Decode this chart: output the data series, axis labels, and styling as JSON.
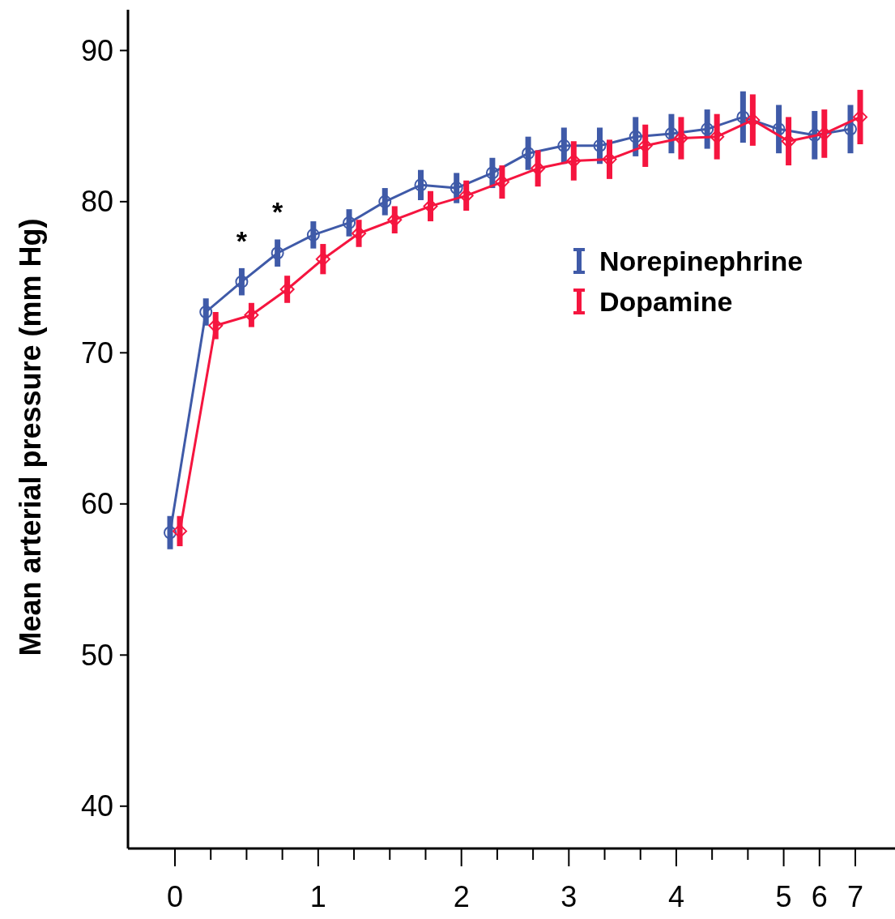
{
  "chart_data": {
    "type": "line",
    "ylabel": "Mean arterial pressure (mm Hg)",
    "categories": [
      "0",
      null,
      null,
      null,
      "1",
      null,
      null,
      null,
      "2",
      null,
      null,
      "3",
      null,
      null,
      "4",
      null,
      null,
      "5",
      "6",
      "7"
    ],
    "series": [
      {
        "name": "Norepinephrine",
        "color": "#3f5aa8",
        "marker": "circle",
        "values": [
          58.1,
          72.7,
          74.7,
          76.6,
          77.8,
          78.6,
          80.0,
          81.1,
          80.9,
          81.9,
          83.2,
          83.7,
          83.7,
          84.3,
          84.5,
          84.8,
          85.6,
          84.8,
          84.4,
          84.8
        ],
        "errors": [
          1.1,
          0.9,
          0.9,
          0.9,
          0.9,
          0.9,
          0.9,
          1.0,
          1.0,
          1.0,
          1.1,
          1.2,
          1.2,
          1.3,
          1.3,
          1.3,
          1.7,
          1.6,
          1.6,
          1.6
        ]
      },
      {
        "name": "Dopamine",
        "color": "#f5153f",
        "marker": "diamond",
        "values": [
          58.2,
          71.8,
          72.5,
          74.2,
          76.2,
          77.9,
          78.8,
          79.7,
          80.4,
          81.3,
          82.2,
          82.7,
          82.8,
          83.7,
          84.2,
          84.3,
          85.4,
          84.0,
          84.5,
          85.6
        ],
        "errors": [
          1.0,
          0.9,
          0.8,
          0.9,
          1.0,
          0.9,
          0.9,
          1.0,
          1.0,
          1.1,
          1.2,
          1.3,
          1.3,
          1.4,
          1.4,
          1.5,
          1.7,
          1.6,
          1.6,
          1.8
        ]
      }
    ],
    "ylim": [
      37.2,
      92.7
    ],
    "yticks": [
      40,
      50,
      60,
      70,
      80,
      90
    ],
    "grid": false,
    "legend": "right",
    "annotations": [
      "*",
      "*"
    ]
  }
}
